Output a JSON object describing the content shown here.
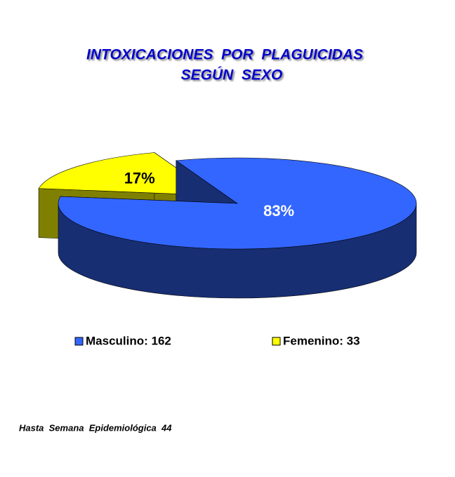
{
  "chart_data": {
    "type": "pie3d",
    "title": "INTOXICACIONES  POR  PLAGUICIDAS",
    "subtitle": "SEGÚN  SEXO",
    "categories": [
      "Masculino: 162",
      "Femenino: 33"
    ],
    "values": [
      83,
      17
    ],
    "value_labels": [
      "83%",
      "17%"
    ],
    "colors": [
      "#3366ff",
      "#ffff00"
    ],
    "legend": "bottom",
    "footnote": "Hasta  Semana  Epidemiológica  44"
  }
}
